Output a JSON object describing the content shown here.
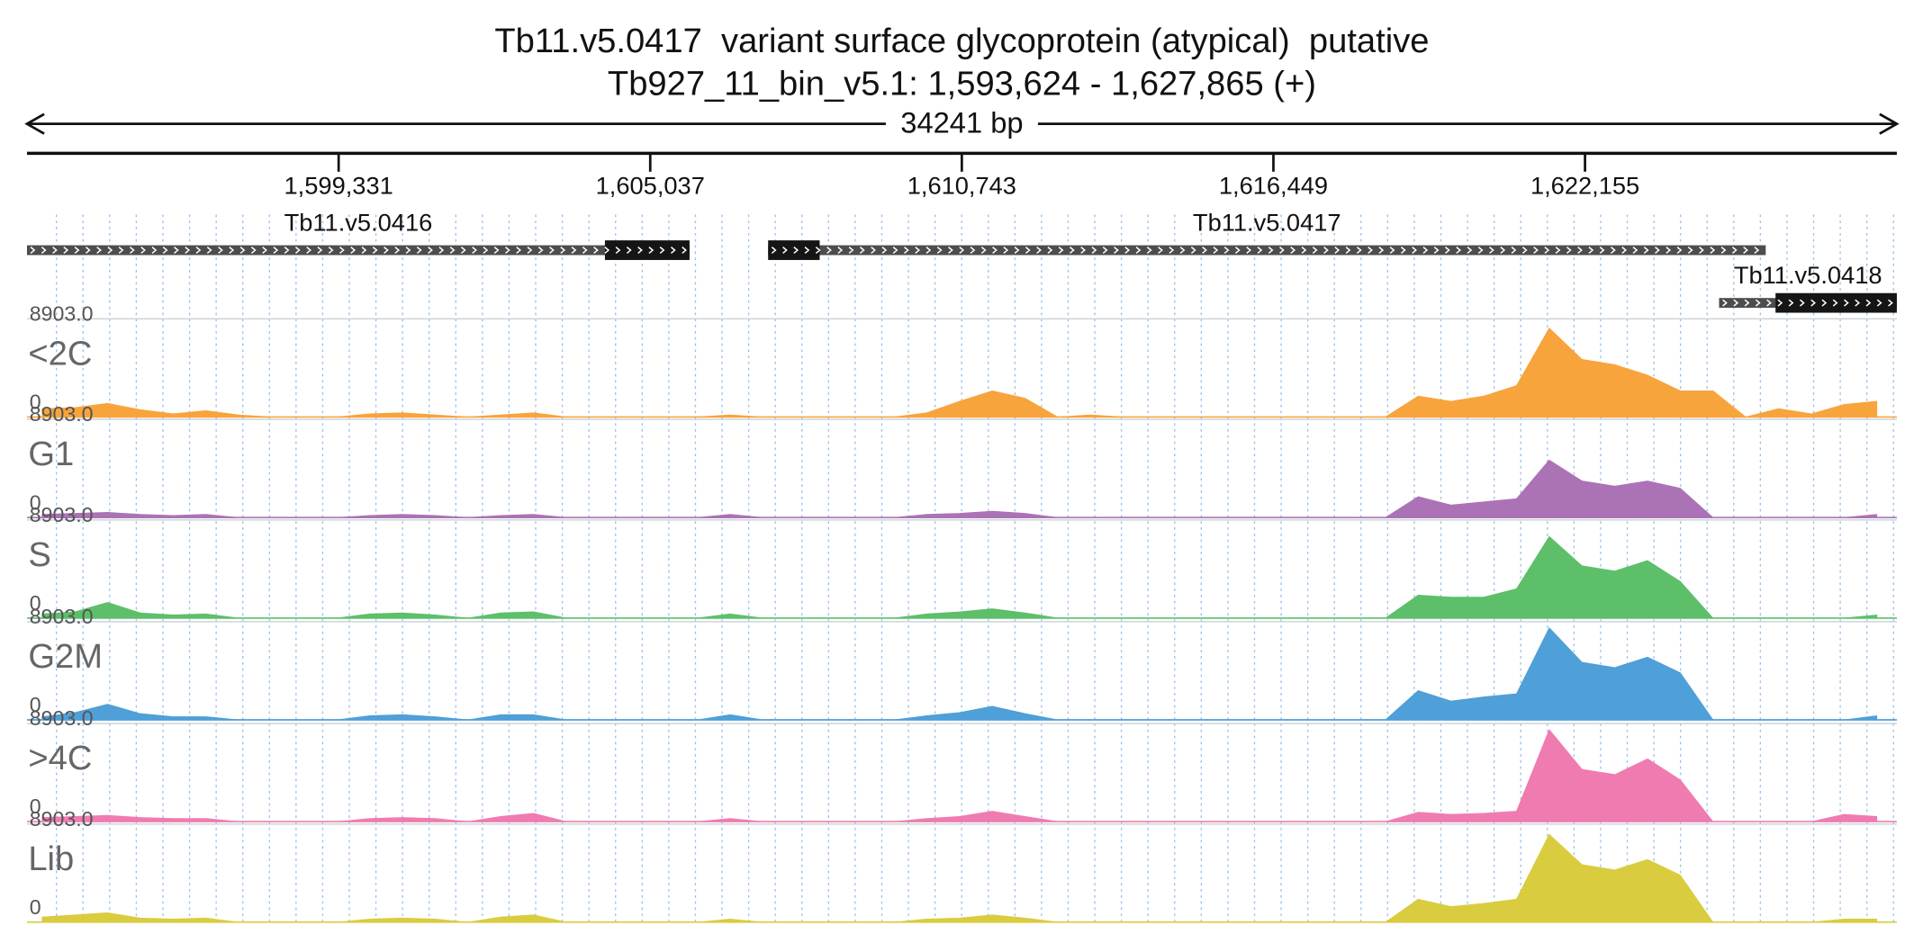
{
  "chart_data": {
    "type": "coverage",
    "title": "Tb11.v5.0417  variant surface glycoprotein (atypical)  putative",
    "subtitle": "Tb927_11_bin_v5.1: 1,593,624 - 1,627,865 (+)",
    "span_label": "34241 bp",
    "xlim": [
      1593624,
      1627865
    ],
    "xticks": [
      {
        "value": 1599331,
        "label": "1,599,331"
      },
      {
        "value": 1605037,
        "label": "1,605,037"
      },
      {
        "value": 1610743,
        "label": "1,610,743"
      },
      {
        "value": 1616449,
        "label": "1,616,449"
      },
      {
        "value": 1622155,
        "label": "1,622,155"
      }
    ],
    "genes": [
      {
        "name": "Tb11.v5.0416",
        "start": 1593624,
        "end": 1605757,
        "cds_start": 1604207,
        "cds_end": 1605757
      },
      {
        "name": "Tb11.v5.0417",
        "start": 1607196,
        "end": 1625464,
        "cds_start": 1607196,
        "cds_end": 1608140
      },
      {
        "name": "Tb11.v5.0418",
        "start": 1624610,
        "end": 1627865,
        "cds_start": 1625644,
        "cds_end": 1627865
      }
    ],
    "ylim": [
      0,
      8903
    ],
    "yticks": [
      0,
      {
        "value": 8903,
        "label": "8903.0"
      }
    ],
    "x": [
      1593900,
      1594500,
      1595100,
      1595700,
      1596300,
      1596900,
      1597500,
      1598100,
      1598700,
      1599300,
      1599900,
      1600500,
      1601100,
      1601700,
      1602300,
      1602900,
      1603500,
      1604100,
      1604700,
      1605300,
      1605900,
      1606500,
      1607100,
      1607700,
      1608300,
      1608900,
      1609500,
      1610100,
      1610700,
      1611300,
      1611900,
      1612500,
      1613100,
      1613700,
      1614300,
      1614900,
      1615500,
      1616100,
      1616700,
      1617300,
      1617900,
      1618500,
      1619100,
      1619700,
      1620300,
      1620900,
      1621500,
      1622100,
      1622700,
      1623300,
      1623900,
      1624500,
      1625100,
      1625700,
      1626300,
      1626900,
      1627500
    ],
    "series": [
      {
        "name": "<2C",
        "color": "#f7a43c",
        "values": [
          800,
          900,
          1300,
          700,
          300,
          600,
          200,
          0,
          0,
          0,
          300,
          400,
          200,
          0,
          200,
          400,
          0,
          0,
          0,
          0,
          0,
          200,
          0,
          0,
          0,
          0,
          0,
          400,
          1500,
          2500,
          1800,
          0,
          200,
          0,
          0,
          0,
          0,
          0,
          0,
          0,
          0,
          0,
          2000,
          1500,
          2000,
          3000,
          8500,
          5500,
          5000,
          4000,
          2500,
          2500,
          0,
          800,
          300,
          1200,
          1500
        ]
      },
      {
        "name": "G1",
        "color": "#ab73b5",
        "values": [
          300,
          400,
          500,
          300,
          200,
          300,
          0,
          0,
          0,
          0,
          200,
          300,
          200,
          0,
          200,
          300,
          0,
          0,
          0,
          0,
          0,
          300,
          0,
          0,
          0,
          0,
          0,
          300,
          400,
          600,
          400,
          0,
          0,
          0,
          0,
          0,
          0,
          0,
          0,
          0,
          0,
          0,
          2000,
          1200,
          1500,
          1800,
          5500,
          3500,
          3000,
          3500,
          2800,
          0,
          0,
          0,
          0,
          0,
          300
        ]
      },
      {
        "name": "S",
        "color": "#5dbf6a",
        "values": [
          400,
          600,
          1500,
          500,
          300,
          400,
          0,
          0,
          0,
          0,
          400,
          500,
          300,
          0,
          500,
          600,
          0,
          0,
          0,
          0,
          0,
          400,
          0,
          0,
          0,
          0,
          0,
          400,
          600,
          900,
          500,
          0,
          0,
          0,
          0,
          0,
          0,
          0,
          0,
          0,
          0,
          0,
          2200,
          2000,
          2000,
          2800,
          7800,
          5000,
          4500,
          5500,
          3500,
          0,
          0,
          0,
          0,
          0,
          300
        ]
      },
      {
        "name": "G2M",
        "color": "#4f9fd8",
        "values": [
          300,
          700,
          1500,
          600,
          300,
          300,
          0,
          0,
          0,
          0,
          400,
          500,
          300,
          0,
          500,
          500,
          0,
          0,
          0,
          0,
          0,
          500,
          0,
          0,
          0,
          0,
          0,
          400,
          700,
          1300,
          600,
          0,
          0,
          0,
          0,
          0,
          0,
          0,
          0,
          0,
          0,
          0,
          2800,
          1800,
          2200,
          2500,
          8800,
          5500,
          5000,
          6000,
          4500,
          0,
          0,
          0,
          0,
          0,
          400
        ]
      },
      {
        "name": ">4C",
        "color": "#f07bb1",
        "values": [
          400,
          500,
          600,
          400,
          300,
          300,
          0,
          0,
          0,
          0,
          300,
          400,
          300,
          0,
          500,
          800,
          0,
          0,
          0,
          0,
          0,
          300,
          0,
          0,
          0,
          0,
          0,
          300,
          500,
          1000,
          500,
          0,
          0,
          0,
          0,
          0,
          0,
          0,
          0,
          0,
          0,
          0,
          900,
          700,
          800,
          1000,
          8800,
          5000,
          4500,
          6000,
          4000,
          0,
          0,
          0,
          0,
          700,
          500
        ]
      },
      {
        "name": "Lib",
        "color": "#d9cc3f",
        "values": [
          500,
          700,
          900,
          400,
          300,
          400,
          0,
          0,
          0,
          0,
          300,
          400,
          300,
          0,
          500,
          700,
          0,
          0,
          0,
          0,
          0,
          300,
          0,
          0,
          0,
          0,
          0,
          300,
          400,
          700,
          400,
          0,
          0,
          0,
          0,
          0,
          0,
          0,
          0,
          0,
          0,
          0,
          2200,
          1500,
          1800,
          2200,
          8400,
          5500,
          5000,
          6000,
          4500,
          0,
          0,
          0,
          0,
          300,
          300
        ]
      }
    ]
  }
}
